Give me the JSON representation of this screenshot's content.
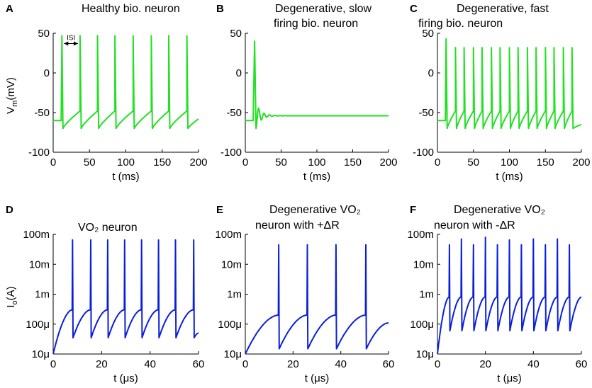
{
  "chart_data": [
    {
      "id": "A",
      "type": "line",
      "title": "Healthy bio. neuron",
      "xlabel": "t (ms)",
      "ylabel": "V",
      "ylabel_sub": "m",
      "ylabel_tail": "(mV)",
      "xlim": [
        0,
        200
      ],
      "ylim": [
        -100,
        50
      ],
      "xticks": [
        0,
        50,
        100,
        150,
        200
      ],
      "xticklabels": [
        "0",
        "50",
        "100",
        "150",
        "200"
      ],
      "yticks": [
        -100,
        -50,
        0,
        50
      ],
      "yticklabels": [
        "-100",
        "-50",
        "0",
        "50"
      ],
      "annotation": "ISI",
      "color": "#22e022",
      "model": {
        "kind": "spiking",
        "rest": -60,
        "onset": 11,
        "spikes": [
          12,
          37,
          61,
          85,
          110,
          135,
          159,
          184
        ],
        "peak": 47,
        "trough": -70,
        "end": -58
      }
    },
    {
      "id": "B",
      "type": "line",
      "title": [
        "Degenerative, slow",
        "firing bio. neuron"
      ],
      "xlabel": "t (ms)",
      "ylabel": "",
      "xlim": [
        0,
        200
      ],
      "ylim": [
        -100,
        50
      ],
      "xticks": [
        0,
        50,
        100,
        150,
        200
      ],
      "xticklabels": [
        "0",
        "50",
        "100",
        "150",
        "200"
      ],
      "yticks": [
        -100,
        -50,
        0,
        50
      ],
      "yticklabels": [
        "-100",
        "-50",
        "0",
        "50"
      ],
      "color": "#22e022",
      "model": {
        "kind": "damped",
        "rest": -60,
        "onset": 11,
        "spike_t": 13,
        "peak": 40,
        "trough": -70,
        "settle": -54
      }
    },
    {
      "id": "C",
      "type": "line",
      "title": [
        "Degenerative, fast",
        "firing bio. neuron"
      ],
      "xlabel": "t (ms)",
      "ylabel": "",
      "xlim": [
        0,
        200
      ],
      "ylim": [
        -100,
        50
      ],
      "xticks": [
        0,
        50,
        100,
        150,
        200
      ],
      "xticklabels": [
        "0",
        "50",
        "100",
        "150",
        "200"
      ],
      "yticks": [
        -100,
        -50,
        0,
        50
      ],
      "yticklabels": [
        "-100",
        "-50",
        "0",
        "50"
      ],
      "color": "#22e022",
      "model": {
        "kind": "spiking",
        "rest": -60,
        "onset": 11,
        "spikes": [
          12,
          25,
          37,
          50,
          62,
          75,
          87,
          100,
          112,
          125,
          137,
          150,
          162,
          175,
          187
        ],
        "peak": 32,
        "first_peak": 43,
        "trough": -70,
        "end": -65
      }
    },
    {
      "id": "D",
      "type": "line",
      "title": "VO₂ neuron",
      "xlabel": "t (μs)",
      "ylabel": "I",
      "ylabel_sub": "o",
      "ylabel_tail": "(A)",
      "xlim": [
        0,
        60
      ],
      "ylim": [
        1e-05,
        0.1
      ],
      "yscale": "log",
      "xticks": [
        0,
        20,
        40,
        60
      ],
      "xticklabels": [
        "0",
        "20",
        "40",
        "60"
      ],
      "yticks": [
        1e-05,
        0.0001,
        0.001,
        0.01,
        0.1
      ],
      "yticklabels": [
        "10μ",
        "100μ",
        "1m",
        "10m",
        "100m"
      ],
      "color": "#0a1fdc",
      "model": {
        "kind": "relax",
        "start": 1e-05,
        "spikes": [
          8,
          15.5,
          22.5,
          29.5,
          36.5,
          43.5,
          50.5,
          58
        ],
        "peak": 0.065,
        "low": 3.5e-05,
        "pre": 0.0003,
        "end": 5e-05
      }
    },
    {
      "id": "E",
      "type": "line",
      "title": [
        "Degenerative VO₂",
        "neuron with +ΔR"
      ],
      "xlabel": "t (μs)",
      "ylabel": "",
      "xlim": [
        0,
        60
      ],
      "ylim": [
        1e-05,
        0.1
      ],
      "yscale": "log",
      "xticks": [
        0,
        20,
        40,
        60
      ],
      "xticklabels": [
        "0",
        "20",
        "40",
        "60"
      ],
      "yticks": [
        1e-05,
        0.0001,
        0.001,
        0.01,
        0.1
      ],
      "yticklabels": [
        "10μ",
        "100μ",
        "1m",
        "10m",
        "100m"
      ],
      "color": "#0a1fdc",
      "model": {
        "kind": "relax",
        "start": 1e-05,
        "spikes": [
          14,
          26,
          38,
          50.5
        ],
        "peak": 0.045,
        "low": 1.5e-05,
        "pre": 0.0002,
        "end": 0.00011
      }
    },
    {
      "id": "F",
      "type": "line",
      "title": [
        "Degenerative VO₂",
        "neuron with -ΔR"
      ],
      "xlabel": "t (μs)",
      "ylabel": "",
      "xlim": [
        0,
        60
      ],
      "ylim": [
        1e-05,
        0.1
      ],
      "yscale": "log",
      "xticks": [
        0,
        20,
        40,
        60
      ],
      "xticklabels": [
        "0",
        "20",
        "40",
        "60"
      ],
      "yticks": [
        1e-05,
        0.0001,
        0.001,
        0.01,
        0.1
      ],
      "yticklabels": [
        "10μ",
        "100μ",
        "1m",
        "10m",
        "100m"
      ],
      "color": "#0a1fdc",
      "model": {
        "kind": "relax",
        "start": 1e-05,
        "spikes": [
          5,
          10,
          15,
          20,
          25,
          30,
          35,
          40,
          45,
          50,
          55
        ],
        "peak": 0.06,
        "peaks": [
          0.045,
          0.07,
          0.045,
          0.08,
          0.045,
          0.065,
          0.045,
          0.07,
          0.045,
          0.07,
          0.045
        ],
        "low": 6e-05,
        "pre": 0.0008,
        "end": 0.0008
      }
    }
  ]
}
